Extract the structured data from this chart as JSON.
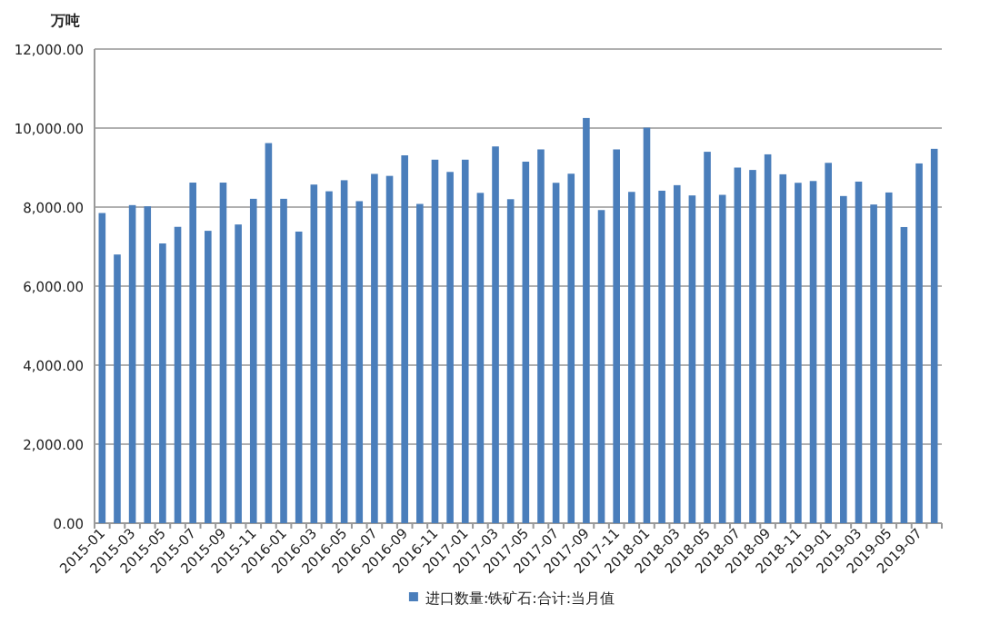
{
  "chart_data": {
    "type": "bar",
    "ylabel": "万吨",
    "categories": [
      "2015-01",
      null,
      "2015-03",
      null,
      "2015-05",
      null,
      "2015-07",
      null,
      "2015-09",
      null,
      "2015-11",
      null,
      "2016-01",
      null,
      "2016-03",
      null,
      "2016-05",
      null,
      "2016-07",
      null,
      "2016-09",
      null,
      "2016-11",
      null,
      "2017-01",
      null,
      "2017-03",
      null,
      "2017-05",
      null,
      "2017-07",
      null,
      "2017-09",
      null,
      "2017-11",
      null,
      "2018-01",
      null,
      "2018-03",
      null,
      "2018-05",
      null,
      "2018-07",
      null,
      "2018-09",
      null,
      "2018-11",
      null,
      "2019-01",
      null,
      "2019-03",
      null,
      "2019-05",
      null,
      "2019-07",
      null
    ],
    "series": [
      {
        "name": "进口数量:铁矿石:合计:当月值",
        "color": "#4a7ebb",
        "values": [
          7850,
          6800,
          8050,
          8020,
          7080,
          7500,
          8620,
          7400,
          8620,
          7560,
          8210,
          9620,
          8210,
          7380,
          8570,
          8400,
          8680,
          8150,
          8840,
          8790,
          9310,
          8080,
          9200,
          8890,
          9200,
          8360,
          9535,
          8200,
          9150,
          9460,
          8615,
          8845,
          10255,
          7925,
          9460,
          8385,
          10010,
          8415,
          8555,
          8295,
          9400,
          8310,
          9000,
          8940,
          9335,
          8830,
          8615,
          8660,
          9120,
          8280,
          8645,
          8065,
          8370,
          7495,
          9105,
          9475
        ]
      }
    ],
    "ylim": [
      0,
      12000
    ],
    "yticks": [
      {
        "value": 0,
        "label": "0.00"
      },
      {
        "value": 2000,
        "label": "2,000.00"
      },
      {
        "value": 4000,
        "label": "4,000.00"
      },
      {
        "value": 6000,
        "label": "6,000.00"
      },
      {
        "value": 8000,
        "label": "8,000.00"
      },
      {
        "value": 10000,
        "label": "10,000.00"
      },
      {
        "value": 12000,
        "label": "12,000.00"
      }
    ],
    "grid": "y",
    "legend": "bottom"
  }
}
